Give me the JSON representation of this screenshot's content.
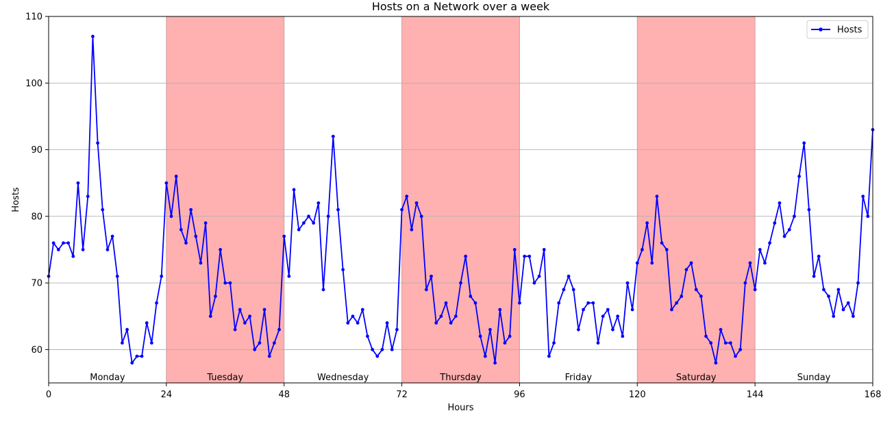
{
  "chart_data": {
    "type": "line",
    "title": "Hosts on a Network over a week",
    "xlabel": "Hours",
    "ylabel": "Hosts",
    "xlim": [
      0,
      168
    ],
    "ylim": [
      55,
      110
    ],
    "xticks": [
      0,
      24,
      48,
      72,
      96,
      120,
      144,
      168
    ],
    "yticks": [
      60,
      70,
      80,
      90,
      100,
      110
    ],
    "grid": "horizontal",
    "legend_placement": "top-right",
    "colors": {
      "line": "#0000ff",
      "shade": "#ffb0b0",
      "grid": "#b0b0b0"
    },
    "shaded_ranges": [
      [
        24,
        48
      ],
      [
        72,
        96
      ],
      [
        120,
        144
      ]
    ],
    "day_labels": [
      {
        "label": "Monday",
        "center": 12
      },
      {
        "label": "Tuesday",
        "center": 36
      },
      {
        "label": "Wednesday",
        "center": 60
      },
      {
        "label": "Thursday",
        "center": 84
      },
      {
        "label": "Friday",
        "center": 108
      },
      {
        "label": "Saturday",
        "center": 132
      },
      {
        "label": "Sunday",
        "center": 156
      }
    ],
    "series": [
      {
        "name": "Hosts",
        "values": [
          71,
          76,
          75,
          76,
          76,
          74,
          85,
          75,
          83,
          107,
          91,
          81,
          75,
          77,
          71,
          61,
          63,
          58,
          59,
          59,
          64,
          61,
          67,
          71,
          85,
          80,
          86,
          78,
          76,
          81,
          77,
          73,
          79,
          65,
          68,
          75,
          70,
          70,
          63,
          66,
          64,
          65,
          60,
          61,
          66,
          59,
          61,
          63,
          77,
          71,
          84,
          78,
          79,
          80,
          79,
          82,
          69,
          80,
          92,
          81,
          72,
          64,
          65,
          64,
          66,
          62,
          60,
          59,
          60,
          64,
          60,
          63,
          81,
          83,
          78,
          82,
          80,
          69,
          71,
          64,
          65,
          67,
          64,
          65,
          70,
          74,
          68,
          67,
          62,
          59,
          63,
          58,
          66,
          61,
          62,
          75,
          67,
          74,
          74,
          70,
          71,
          75,
          59,
          61,
          67,
          69,
          71,
          69,
          63,
          66,
          67,
          67,
          61,
          65,
          66,
          63,
          65,
          62,
          70,
          66,
          73,
          75,
          79,
          73,
          83,
          76,
          75,
          66,
          67,
          68,
          72,
          73,
          69,
          68,
          62,
          61,
          58,
          63,
          61,
          61,
          59,
          60,
          70,
          73,
          69,
          75,
          73,
          76,
          79,
          82,
          77,
          78,
          80,
          86,
          91,
          81,
          71,
          74,
          69,
          68,
          65,
          69,
          66,
          67,
          65,
          70,
          83,
          80,
          93
        ]
      }
    ]
  }
}
